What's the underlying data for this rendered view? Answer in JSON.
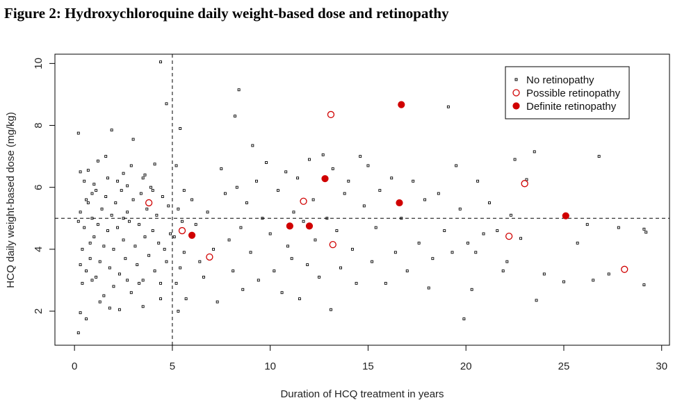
{
  "figure": {
    "title": "Figure 2: Hydroxychloroquine daily weight-based dose and retinopathy"
  },
  "chart_data": {
    "type": "scatter",
    "xlabel": "Duration of HCQ treatment in years",
    "ylabel": "HCQ daily weight-based dose (mg/kg)",
    "xlim": [
      -1,
      30.4
    ],
    "ylim": [
      0.9,
      10.3
    ],
    "xticks": [
      0,
      5,
      10,
      15,
      20,
      25,
      30
    ],
    "yticks": [
      2,
      4,
      6,
      8,
      10
    ],
    "reference_lines": {
      "vertical_x": 5,
      "horizontal_y": 5
    },
    "legend_position": "top-right",
    "colors": {
      "no_retinopathy": "#000000",
      "retinopathy": "#d00000"
    },
    "series": [
      {
        "name": "No retinopathy",
        "marker": "small-square",
        "points": [
          [
            0.2,
            7.75
          ],
          [
            0.2,
            1.3
          ],
          [
            0.3,
            1.95
          ],
          [
            0.6,
            1.75
          ],
          [
            0.3,
            6.5
          ],
          [
            0.5,
            6.2
          ],
          [
            0.7,
            6.55
          ],
          [
            0.9,
            5.8
          ],
          [
            1.2,
            6.85
          ],
          [
            1.6,
            7.0
          ],
          [
            1.9,
            7.85
          ],
          [
            2.2,
            6.2
          ],
          [
            2.5,
            6.45
          ],
          [
            2.7,
            6.05
          ],
          [
            3.0,
            7.55
          ],
          [
            3.5,
            6.3
          ],
          [
            4.1,
            6.75
          ],
          [
            4.4,
            10.05
          ],
          [
            4.7,
            8.7
          ],
          [
            2.3,
            2.05
          ],
          [
            1.8,
            2.1
          ],
          [
            3.5,
            2.15
          ],
          [
            4.4,
            2.4
          ],
          [
            3.3,
            2.9
          ],
          [
            2.7,
            3.0
          ],
          [
            0.4,
            2.9
          ],
          [
            0.2,
            4.9
          ],
          [
            0.3,
            5.2
          ],
          [
            0.4,
            4.0
          ],
          [
            0.5,
            4.7
          ],
          [
            0.6,
            3.3
          ],
          [
            0.7,
            5.5
          ],
          [
            0.8,
            4.2
          ],
          [
            0.8,
            3.7
          ],
          [
            0.9,
            5.0
          ],
          [
            1.0,
            4.4
          ],
          [
            1.1,
            3.1
          ],
          [
            1.1,
            5.9
          ],
          [
            1.2,
            4.8
          ],
          [
            1.3,
            3.6
          ],
          [
            1.4,
            5.3
          ],
          [
            1.5,
            4.1
          ],
          [
            1.5,
            2.5
          ],
          [
            1.6,
            5.7
          ],
          [
            1.7,
            4.6
          ],
          [
            1.8,
            3.4
          ],
          [
            1.9,
            5.1
          ],
          [
            2.0,
            4.0
          ],
          [
            2.0,
            2.8
          ],
          [
            2.1,
            5.5
          ],
          [
            2.2,
            4.7
          ],
          [
            2.3,
            3.2
          ],
          [
            2.4,
            5.9
          ],
          [
            2.5,
            4.3
          ],
          [
            2.6,
            3.7
          ],
          [
            2.7,
            5.2
          ],
          [
            2.8,
            4.9
          ],
          [
            2.9,
            2.6
          ],
          [
            3.0,
            5.6
          ],
          [
            3.1,
            4.1
          ],
          [
            3.2,
            3.5
          ],
          [
            3.3,
            4.8
          ],
          [
            3.4,
            5.8
          ],
          [
            3.5,
            3.0
          ],
          [
            3.6,
            4.4
          ],
          [
            3.7,
            5.3
          ],
          [
            3.8,
            3.8
          ],
          [
            3.9,
            6.0
          ],
          [
            4.0,
            4.6
          ],
          [
            4.1,
            3.3
          ],
          [
            4.2,
            5.1
          ],
          [
            4.3,
            4.2
          ],
          [
            4.4,
            2.9
          ],
          [
            4.5,
            5.7
          ],
          [
            4.6,
            4.0
          ],
          [
            4.7,
            3.6
          ],
          [
            4.8,
            5.4
          ],
          [
            4.9,
            4.5
          ],
          [
            0.3,
            3.5
          ],
          [
            0.9,
            3.0
          ],
          [
            1.3,
            2.3
          ],
          [
            2.5,
            5.0
          ],
          [
            3.6,
            6.4
          ],
          [
            1.0,
            6.1
          ],
          [
            0.6,
            5.6
          ],
          [
            1.7,
            6.3
          ],
          [
            2.9,
            6.7
          ],
          [
            4.0,
            5.9
          ],
          [
            5.2,
            6.7
          ],
          [
            5.4,
            7.9
          ],
          [
            5.6,
            5.9
          ],
          [
            5.3,
            5.3
          ],
          [
            5.5,
            4.9
          ],
          [
            5.1,
            4.4
          ],
          [
            5.6,
            3.9
          ],
          [
            5.4,
            3.4
          ],
          [
            5.2,
            2.9
          ],
          [
            5.7,
            2.4
          ],
          [
            5.3,
            2.0
          ],
          [
            6.0,
            5.6
          ],
          [
            6.2,
            4.8
          ],
          [
            6.4,
            3.6
          ],
          [
            6.6,
            3.1
          ],
          [
            6.8,
            5.2
          ],
          [
            7.1,
            4.0
          ],
          [
            7.3,
            2.3
          ],
          [
            7.5,
            6.6
          ],
          [
            7.7,
            5.8
          ],
          [
            7.9,
            4.3
          ],
          [
            8.1,
            3.3
          ],
          [
            8.2,
            8.3
          ],
          [
            8.3,
            6.0
          ],
          [
            8.5,
            4.7
          ],
          [
            8.4,
            9.15
          ],
          [
            8.6,
            2.7
          ],
          [
            8.8,
            5.5
          ],
          [
            9.0,
            3.9
          ],
          [
            9.1,
            7.35
          ],
          [
            9.3,
            6.2
          ],
          [
            9.4,
            3.0
          ],
          [
            9.6,
            5.0
          ],
          [
            9.8,
            6.8
          ],
          [
            10.0,
            4.5
          ],
          [
            10.2,
            3.3
          ],
          [
            10.4,
            5.9
          ],
          [
            10.6,
            2.6
          ],
          [
            10.8,
            6.5
          ],
          [
            10.9,
            4.1
          ],
          [
            11.1,
            3.7
          ],
          [
            11.2,
            5.2
          ],
          [
            11.4,
            6.3
          ],
          [
            11.5,
            2.4
          ],
          [
            11.7,
            4.9
          ],
          [
            11.9,
            3.5
          ],
          [
            12.0,
            6.9
          ],
          [
            12.2,
            5.6
          ],
          [
            12.3,
            4.3
          ],
          [
            12.5,
            3.1
          ],
          [
            12.7,
            7.05
          ],
          [
            12.9,
            5.0
          ],
          [
            13.1,
            2.05
          ],
          [
            13.2,
            6.6
          ],
          [
            13.4,
            4.6
          ],
          [
            13.6,
            3.4
          ],
          [
            13.8,
            5.8
          ],
          [
            14.0,
            6.2
          ],
          [
            14.2,
            4.0
          ],
          [
            14.4,
            2.9
          ],
          [
            14.6,
            7.0
          ],
          [
            14.8,
            5.4
          ],
          [
            15.0,
            6.7
          ],
          [
            15.2,
            3.6
          ],
          [
            15.4,
            4.7
          ],
          [
            15.6,
            5.9
          ],
          [
            15.9,
            2.9
          ],
          [
            16.2,
            6.3
          ],
          [
            16.4,
            3.9
          ],
          [
            16.7,
            5.0
          ],
          [
            17.0,
            3.3
          ],
          [
            17.3,
            6.2
          ],
          [
            17.6,
            4.2
          ],
          [
            17.9,
            5.6
          ],
          [
            18.1,
            2.75
          ],
          [
            18.3,
            3.7
          ],
          [
            18.6,
            5.8
          ],
          [
            18.9,
            4.6
          ],
          [
            19.1,
            8.6
          ],
          [
            19.3,
            3.9
          ],
          [
            19.5,
            6.7
          ],
          [
            19.7,
            5.3
          ],
          [
            19.9,
            1.75
          ],
          [
            20.1,
            4.2
          ],
          [
            20.3,
            2.7
          ],
          [
            20.5,
            3.9
          ],
          [
            20.6,
            6.2
          ],
          [
            20.9,
            4.5
          ],
          [
            21.2,
            5.5
          ],
          [
            21.6,
            4.6
          ],
          [
            21.9,
            3.3
          ],
          [
            22.1,
            3.6
          ],
          [
            22.3,
            5.1
          ],
          [
            22.5,
            6.9
          ],
          [
            22.8,
            4.35
          ],
          [
            23.1,
            6.25
          ],
          [
            23.5,
            7.15
          ],
          [
            23.6,
            2.35
          ],
          [
            24.0,
            3.2
          ],
          [
            25.0,
            2.95
          ],
          [
            25.7,
            4.2
          ],
          [
            26.2,
            4.8
          ],
          [
            26.5,
            3.0
          ],
          [
            26.8,
            7.0
          ],
          [
            27.3,
            3.2
          ],
          [
            27.8,
            4.7
          ],
          [
            29.1,
            4.65
          ],
          [
            29.1,
            2.85
          ],
          [
            29.2,
            4.55
          ]
        ]
      },
      {
        "name": "Possible retinopathy",
        "marker": "open-circle",
        "points": [
          [
            3.8,
            5.5
          ],
          [
            5.5,
            4.6
          ],
          [
            6.9,
            3.75
          ],
          [
            11.7,
            5.55
          ],
          [
            13.1,
            8.35
          ],
          [
            13.2,
            4.15
          ],
          [
            22.2,
            4.42
          ],
          [
            23.0,
            6.12
          ],
          [
            28.1,
            3.35
          ]
        ]
      },
      {
        "name": "Definite retinopathy",
        "marker": "filled-circle",
        "points": [
          [
            6.0,
            4.45
          ],
          [
            11.0,
            4.75
          ],
          [
            12.0,
            4.75
          ],
          [
            12.8,
            6.28
          ],
          [
            16.6,
            5.5
          ],
          [
            16.7,
            8.67
          ],
          [
            25.1,
            5.08
          ]
        ]
      }
    ]
  }
}
